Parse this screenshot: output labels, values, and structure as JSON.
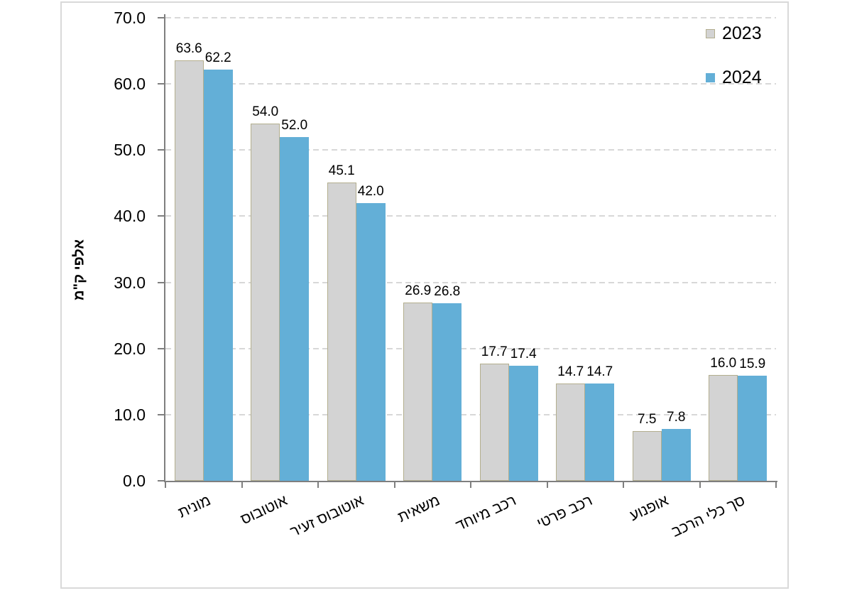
{
  "chart_data": {
    "type": "bar",
    "title": "",
    "ylabel": "אלפי ק\"מ",
    "categories": [
      "מונית",
      "אוטובוס",
      "אוטובוס זעיר",
      "משאית",
      "רכב מיוחד",
      "רכב פרטי",
      "אופנוע",
      "סך כלי הרכב"
    ],
    "series": [
      {
        "name": "2023",
        "color": "#d3d3d3",
        "border_color": "#b3ae8e",
        "values": [
          63.6,
          54.0,
          45.1,
          26.9,
          17.7,
          14.7,
          7.5,
          16.0
        ]
      },
      {
        "name": "2024",
        "color": "#63afd7",
        "border_color": "#63afd7",
        "values": [
          62.2,
          52.0,
          42.0,
          26.8,
          17.4,
          14.7,
          7.8,
          15.9
        ]
      }
    ],
    "ylim": [
      0,
      70
    ],
    "ytick_step": 10,
    "ytick_labels": [
      "0.0",
      "10.0",
      "20.0",
      "30.0",
      "40.0",
      "50.0",
      "60.0",
      "70.0"
    ],
    "value_label_decimals": 1,
    "grid": "horizontal-dashed",
    "legend_position": "top-right",
    "colors": {
      "axis": "#7f7f7f",
      "gridline": "#d8d8d8",
      "frame_border": "#d9d9d9",
      "background": "#ffffff",
      "text": "#000000"
    }
  }
}
